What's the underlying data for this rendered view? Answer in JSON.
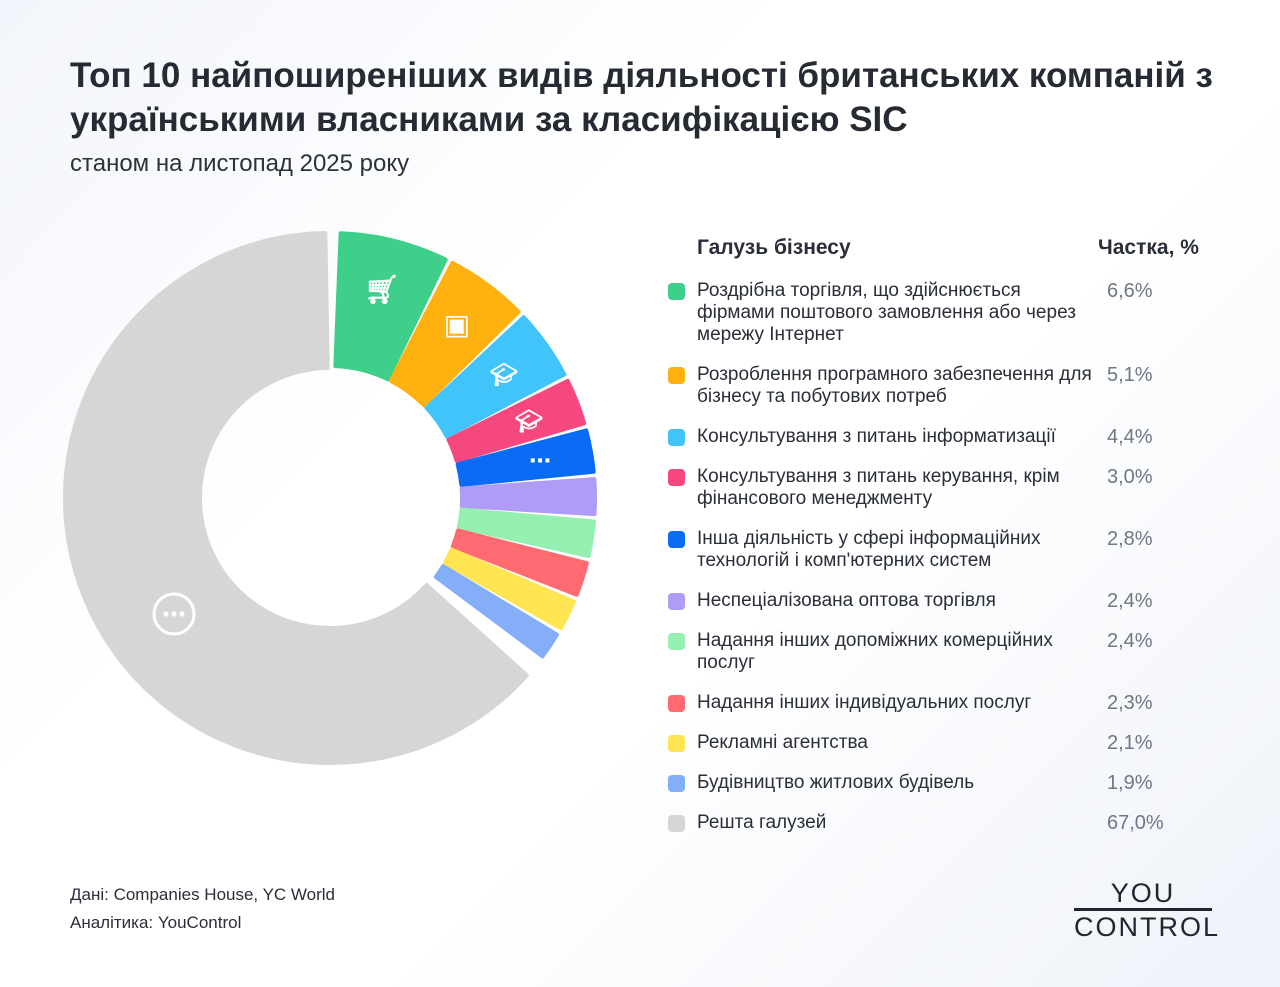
{
  "title": "Топ 10 найпоширеніших видів діяльності британських компаній з українськими власниками за класифікацією SIC",
  "subtitle": "станом на листопад 2025 року",
  "chart_data": {
    "type": "pie",
    "variant": "donut",
    "legend_header_label": "Галузь бізнесу",
    "legend_header_value": "Частка, %",
    "legend_position": "right",
    "slices": [
      {
        "label": "Роздрібна торгівля, що здійснюється фірмами поштового замовлення або через мережу Інтернет",
        "value": 6.6,
        "display": "6,6%",
        "color": "#3ecf8a",
        "icon": "shopping-cart-icon"
      },
      {
        "label": "Розроблення програмного забезпечення для бізнесу та побутових потреб",
        "value": 5.1,
        "display": "5,1%",
        "color": "#ffb20f",
        "icon": "laptop-user-icon"
      },
      {
        "label": "Консультування з питань інформатизації",
        "value": 4.4,
        "display": "4,4%",
        "color": "#40c4fa",
        "icon": "graduation-cap-info-icon"
      },
      {
        "label": "Консультування з питань керування, крім фінансового менеджменту",
        "value": 3.0,
        "display": "3,0%",
        "color": "#f7477f",
        "icon": "graduation-cap-gear-icon"
      },
      {
        "label": "Інша діяльність у сфері інформаційних технологій і комп'ютерних систем",
        "value": 2.8,
        "display": "2,8%",
        "color": "#0a6cf5",
        "icon": "laptop-dots-icon"
      },
      {
        "label": "Неспеціалізована оптова торгівля",
        "value": 2.4,
        "display": "2,4%",
        "color": "#b09cf7"
      },
      {
        "label": "Надання інших допоміжних комерційних послуг",
        "value": 2.4,
        "display": "2,4%",
        "color": "#95efb1"
      },
      {
        "label": "Надання інших індивідуальних послуг",
        "value": 2.3,
        "display": "2,3%",
        "color": "#ff6b70"
      },
      {
        "label": "Рекламні агентства",
        "value": 2.1,
        "display": "2,1%",
        "color": "#ffe552"
      },
      {
        "label": "Будівництво житлових будівель",
        "value": 1.9,
        "display": "1,9%",
        "color": "#85aef8"
      },
      {
        "label": "Решта галузей",
        "value": 67.0,
        "display": "67,0%",
        "color": "#d6d6d6",
        "icon": "more-dots-icon"
      }
    ]
  },
  "footer": {
    "data_source": "Дані: Companies House, YC World",
    "analytics": "Аналітика: YouControl"
  },
  "logo": {
    "line1": "YOU",
    "line2": "CONTROL"
  }
}
